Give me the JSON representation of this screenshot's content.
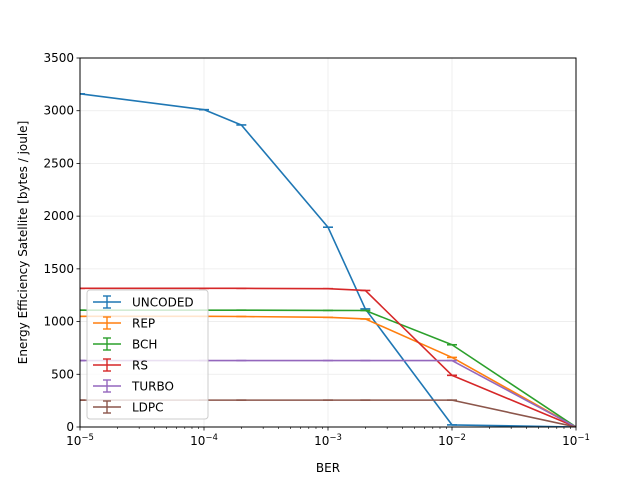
{
  "chart_data": {
    "type": "line",
    "title": "",
    "xlabel": "BER",
    "ylabel": "Energy Efficiency Satellite [bytes / joule]",
    "xscale": "log",
    "xlim": [
      1e-05,
      0.1
    ],
    "ylim": [
      0,
      3500
    ],
    "grid": true,
    "legend_position": "lower-left",
    "x_ticks": [
      {
        "value": 1e-05,
        "base": "10",
        "exp": "−5"
      },
      {
        "value": 0.0001,
        "base": "10",
        "exp": "−4"
      },
      {
        "value": 0.001,
        "base": "10",
        "exp": "−3"
      },
      {
        "value": 0.01,
        "base": "10",
        "exp": "−2"
      },
      {
        "value": 0.1,
        "base": "10",
        "exp": "−1"
      }
    ],
    "y_ticks": [
      {
        "value": 0,
        "label": "0"
      },
      {
        "value": 500,
        "label": "500"
      },
      {
        "value": 1000,
        "label": "1000"
      },
      {
        "value": 1500,
        "label": "1500"
      },
      {
        "value": 2000,
        "label": "2000"
      },
      {
        "value": 2500,
        "label": "2500"
      },
      {
        "value": 3000,
        "label": "3000"
      },
      {
        "value": 3500,
        "label": "3500"
      }
    ],
    "x": [
      1e-05,
      0.0001,
      0.0002,
      0.001,
      0.002,
      0.01,
      0.1
    ],
    "series": [
      {
        "name": "UNCODED",
        "color": "#1f77b4",
        "values": [
          3160,
          3010,
          2865,
          1895,
          1120,
          20,
          0
        ]
      },
      {
        "name": "REP",
        "color": "#ff7f0e",
        "values": [
          1050,
          1050,
          1048,
          1040,
          1025,
          660,
          0
        ]
      },
      {
        "name": "BCH",
        "color": "#2ca02c",
        "values": [
          1108,
          1108,
          1108,
          1106,
          1105,
          780,
          0
        ]
      },
      {
        "name": "RS",
        "color": "#d62728",
        "values": [
          1315,
          1315,
          1315,
          1312,
          1295,
          490,
          0
        ]
      },
      {
        "name": "TURBO",
        "color": "#9467bd",
        "values": [
          630,
          630,
          630,
          630,
          630,
          630,
          0
        ]
      },
      {
        "name": "LDPC",
        "color": "#8c564b",
        "values": [
          255,
          255,
          255,
          255,
          255,
          255,
          0
        ]
      }
    ]
  }
}
